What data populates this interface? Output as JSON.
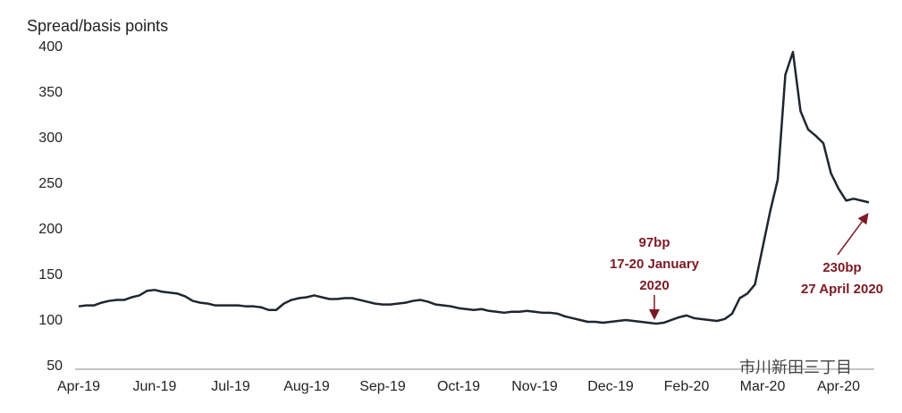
{
  "chart_data": {
    "type": "line",
    "y_label": "Spread/basis points",
    "categories": [
      "Apr-19",
      null,
      null,
      null,
      null,
      null,
      null,
      null,
      null,
      null,
      "Jun-19",
      null,
      null,
      null,
      null,
      null,
      null,
      null,
      null,
      null,
      "Jul-19",
      null,
      null,
      null,
      null,
      null,
      null,
      null,
      null,
      null,
      "Aug-19",
      null,
      null,
      null,
      null,
      null,
      null,
      null,
      null,
      null,
      "Sep-19",
      null,
      null,
      null,
      null,
      null,
      null,
      null,
      null,
      null,
      "Oct-19",
      null,
      null,
      null,
      null,
      null,
      null,
      null,
      null,
      null,
      "Nov-19",
      null,
      null,
      null,
      null,
      null,
      null,
      null,
      null,
      null,
      "Dec-19",
      null,
      null,
      null,
      null,
      null,
      null,
      null,
      null,
      null,
      "Feb-20",
      null,
      null,
      null,
      null,
      null,
      null,
      null,
      null,
      null,
      "Mar-20",
      null,
      null,
      null,
      null,
      null,
      null,
      null,
      null,
      null,
      "Apr-20",
      null,
      null,
      null,
      null
    ],
    "series": [
      {
        "color": "#1f262e",
        "values": [
          116,
          117,
          117,
          120,
          122,
          123,
          123,
          126,
          128,
          133,
          134,
          132,
          131,
          130,
          127,
          122,
          120,
          119,
          117,
          117,
          117,
          117,
          116,
          116,
          115,
          112,
          112,
          119,
          123,
          125,
          126,
          128,
          126,
          124,
          124,
          125,
          125,
          123,
          121,
          119,
          118,
          118,
          119,
          120,
          122,
          123,
          121,
          118,
          117,
          116,
          114,
          113,
          112,
          113,
          111,
          110,
          109,
          110,
          110,
          111,
          110,
          109,
          109,
          108,
          105,
          103,
          101,
          99,
          99,
          98,
          99,
          100,
          101,
          100,
          99,
          98,
          97,
          98,
          101,
          104,
          106,
          103,
          102,
          101,
          100,
          102,
          108,
          125,
          130,
          140,
          180,
          220,
          255,
          370,
          395,
          330,
          310,
          303,
          295,
          262,
          245,
          232,
          234,
          232,
          230
        ]
      }
    ],
    "ylim": [
      50,
      400
    ],
    "yticks": [
      50,
      100,
      150,
      200,
      250,
      300,
      350,
      400
    ],
    "annotations": [
      {
        "lines": [
          "97bp",
          "17-20 January",
          "2020"
        ]
      },
      {
        "lines": [
          "230bp",
          "27 April 2020"
        ]
      }
    ],
    "watermark": "市川新田三丁目"
  }
}
